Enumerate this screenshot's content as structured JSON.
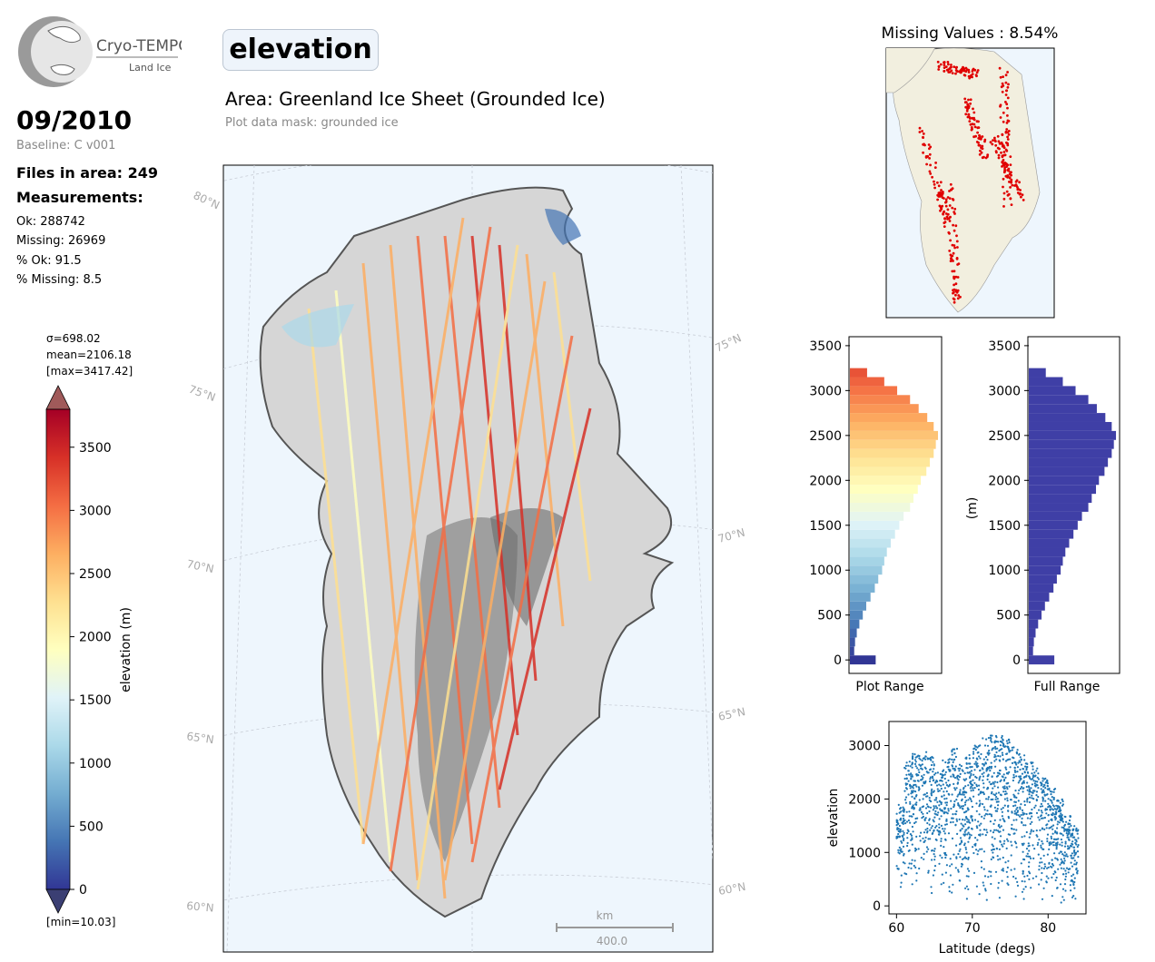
{
  "logo": {
    "name": "Cryo-TEMPO",
    "subtitle": "Land Ice"
  },
  "header": {
    "variable": "elevation",
    "area_title": "Area: Greenland Ice Sheet (Grounded Ice)",
    "mask": "Plot data mask: grounded ice"
  },
  "summary": {
    "date": "09/2010",
    "baseline": "Baseline: C v001",
    "files": "Files in area: 249",
    "measurements_label": "Measurements:",
    "ok": "Ok: 288742",
    "missing": "Missing: 26969",
    "pct_ok": "% Ok: 91.5",
    "pct_missing": "% Missing: 8.5"
  },
  "colorbar": {
    "sigma": "σ=698.02",
    "mean": "mean=2106.18",
    "max": "[max=3417.42]",
    "min": "[min=10.03]",
    "label": "elevation (m)",
    "ticks": [
      0,
      500,
      1000,
      1500,
      2000,
      2500,
      3000,
      3500
    ],
    "range": [
      0,
      3800
    ],
    "cmap": [
      "#313695",
      "#4575b4",
      "#74add1",
      "#abd9e9",
      "#e0f3f8",
      "#ffffbf",
      "#fee090",
      "#fdae61",
      "#f46d43",
      "#d73027",
      "#a50026"
    ],
    "over_color": "#a05a5a",
    "under_color": "#3b3f73"
  },
  "main_map": {
    "lat_labels_left": [
      "80°N",
      "75°N",
      "70°N",
      "65°N",
      "60°N"
    ],
    "lat_labels_right": [
      "75°N",
      "70°N",
      "65°N",
      "60°N"
    ],
    "scalebar_unit": "km",
    "scalebar_value": "400.0",
    "ocean_color": "#eef6fd"
  },
  "missing_map": {
    "title": "Missing Values : 8.54%",
    "land_color": "#f2efdf",
    "point_color": "#e00000"
  },
  "chart_data": [
    {
      "type": "bar",
      "orientation": "horizontal",
      "title": "",
      "xlabel": "Plot Range",
      "ylabel": "",
      "ylim": [
        -150,
        3600
      ],
      "yticks": [
        0,
        500,
        1000,
        1500,
        2000,
        2500,
        3000,
        3500
      ],
      "bin_centers": [
        0,
        100,
        200,
        300,
        400,
        500,
        600,
        700,
        800,
        900,
        1000,
        1100,
        1200,
        1300,
        1400,
        1500,
        1600,
        1700,
        1800,
        1900,
        2000,
        2100,
        2200,
        2300,
        2400,
        2500,
        2600,
        2700,
        2800,
        2900,
        3000,
        3100,
        3200
      ],
      "values": [
        60,
        10,
        12,
        16,
        22,
        30,
        38,
        48,
        58,
        66,
        75,
        80,
        86,
        95,
        105,
        115,
        125,
        140,
        148,
        158,
        165,
        178,
        186,
        195,
        200,
        205,
        195,
        180,
        160,
        140,
        110,
        80,
        40
      ],
      "colored_by_cmap": true
    },
    {
      "type": "bar",
      "orientation": "horizontal",
      "title": "",
      "xlabel": "Full Range",
      "ylabel": "(m)",
      "ylim": [
        -150,
        3600
      ],
      "yticks": [
        0,
        500,
        1000,
        1500,
        2000,
        2500,
        3000,
        3500
      ],
      "bin_centers": [
        0,
        100,
        200,
        300,
        400,
        500,
        600,
        700,
        800,
        900,
        1000,
        1100,
        1200,
        1300,
        1400,
        1500,
        1600,
        1700,
        1800,
        1900,
        2000,
        2100,
        2200,
        2300,
        2400,
        2500,
        2600,
        2700,
        2800,
        2900,
        3000,
        3100,
        3200
      ],
      "values": [
        60,
        10,
        12,
        16,
        22,
        30,
        38,
        48,
        58,
        66,
        75,
        80,
        86,
        95,
        105,
        115,
        125,
        140,
        148,
        158,
        165,
        178,
        186,
        195,
        200,
        205,
        195,
        180,
        160,
        140,
        110,
        80,
        40
      ],
      "color": "#3f3fa6"
    },
    {
      "type": "scatter",
      "title": "",
      "xlabel": "Latitude (degs)",
      "ylabel": "elevation",
      "xlim": [
        59,
        85
      ],
      "ylim": [
        -150,
        3450
      ],
      "xticks": [
        60,
        70,
        80
      ],
      "yticks": [
        0,
        1000,
        2000,
        3000
      ],
      "color": "#1f77b4",
      "envelope": {
        "lat": [
          60.5,
          61.5,
          62.5,
          63.5,
          64.5,
          65.5,
          66.5,
          67.5,
          68.5,
          69.5,
          70.5,
          71.5,
          72.5,
          73.5,
          74.5,
          75.5,
          76.5,
          77.5,
          78.5,
          79.5,
          80.5,
          81.5,
          82.5,
          83.5
        ],
        "max": [
          1900,
          2700,
          2850,
          2880,
          2800,
          2500,
          2750,
          2950,
          2650,
          2850,
          3050,
          3150,
          3250,
          3220,
          3150,
          3000,
          2850,
          2700,
          2600,
          2400,
          2200,
          2000,
          1700,
          1500
        ],
        "min": [
          300,
          250,
          200,
          200,
          150,
          150,
          100,
          100,
          100,
          100,
          100,
          100,
          150,
          100,
          100,
          100,
          100,
          100,
          100,
          100,
          100,
          50,
          50,
          50
        ]
      }
    }
  ]
}
